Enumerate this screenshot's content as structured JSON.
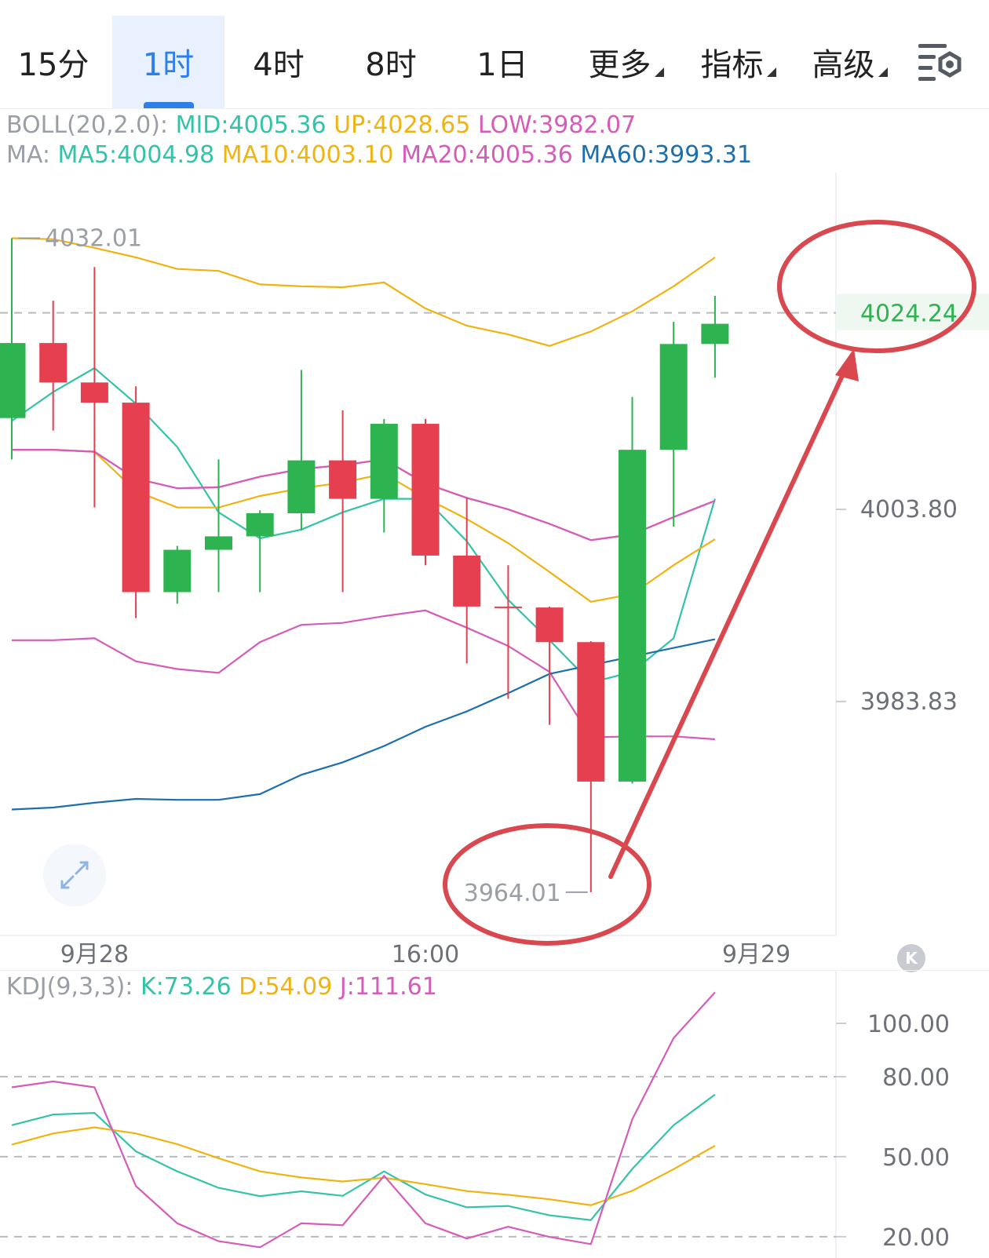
{
  "tabs": [
    {
      "label": "15分",
      "active": false,
      "dropdown": false
    },
    {
      "label": "1时",
      "active": true,
      "dropdown": false
    },
    {
      "label": "4时",
      "active": false,
      "dropdown": false
    },
    {
      "label": "8时",
      "active": false,
      "dropdown": false
    },
    {
      "label": "1日",
      "active": false,
      "dropdown": false
    },
    {
      "label": "更多",
      "active": false,
      "dropdown": true
    },
    {
      "label": "指标",
      "active": false,
      "dropdown": true
    },
    {
      "label": "高级",
      "active": false,
      "dropdown": true
    }
  ],
  "icons": {
    "settings": "chart-settings-icon",
    "expand": "expand-arrows-icon",
    "collapse": "k-collapse-icon"
  },
  "boll_legend": {
    "name": "BOLL(20,2.0):",
    "mid": "MID:4005.36",
    "up": "UP:4028.65",
    "low": "LOW:3982.07"
  },
  "ma_legend": {
    "name": "MA:",
    "ma5": "MA5:4004.98",
    "ma10": "MA10:4003.10",
    "ma20": "MA20:4005.36",
    "ma60": "MA60:3993.31"
  },
  "kdj_legend": {
    "name": "KDJ(9,3,3):",
    "k": "K:73.26",
    "d": "D:54.09",
    "j": "J:111.61"
  },
  "colors": {
    "up": "#2db350",
    "down": "#e63f4f",
    "boll_up": "#efb312",
    "boll_mid": "#d55cb8",
    "boll_low": "#d55cb8",
    "ma5": "#33c3a8",
    "ma10": "#efb312",
    "ma20": "#d55cb8",
    "ma60": "#1d6fae",
    "annotation": "#d9474f",
    "last_price": "#2db350",
    "active_tab": "#2f7fe8"
  },
  "chart_data": [
    {
      "type": "candlestick",
      "title": "",
      "y_ticks": [
        "4003.80",
        "3983.83"
      ],
      "ylim": [
        3959.5,
        4038
      ],
      "x_ticks": [
        {
          "label": "9月28",
          "index": 2
        },
        {
          "label": "16:00",
          "index": 10
        },
        {
          "label": "9月29",
          "index": 18
        }
      ],
      "high_label": "4032.01",
      "low_label": "3964.01",
      "last_price": "4024.24",
      "candles": [
        {
          "o": 4013.3,
          "h": 4032.0,
          "l": 4009.0,
          "c": 4021.1
        },
        {
          "o": 4021.1,
          "h": 4025.5,
          "l": 4012.0,
          "c": 4017.0
        },
        {
          "o": 4017.0,
          "h": 4029.0,
          "l": 4004.0,
          "c": 4014.9
        },
        {
          "o": 4014.9,
          "h": 4016.6,
          "l": 3992.5,
          "c": 3995.2
        },
        {
          "o": 3995.2,
          "h": 4000.0,
          "l": 3994.0,
          "c": 3999.6
        },
        {
          "o": 3999.6,
          "h": 4009.0,
          "l": 3995.2,
          "c": 4001.0
        },
        {
          "o": 4001.0,
          "h": 4003.7,
          "l": 3995.2,
          "c": 4003.4
        },
        {
          "o": 4003.4,
          "h": 4018.3,
          "l": 4001.6,
          "c": 4008.9
        },
        {
          "o": 4008.9,
          "h": 4014.1,
          "l": 3995.2,
          "c": 4004.9
        },
        {
          "o": 4004.9,
          "h": 4013.2,
          "l": 4001.4,
          "c": 4012.7
        },
        {
          "o": 4012.7,
          "h": 4013.2,
          "l": 3998.0,
          "c": 3999.0
        },
        {
          "o": 3999.0,
          "h": 4005.0,
          "l": 3987.8,
          "c": 3993.7
        },
        {
          "o": 3993.7,
          "h": 3998.0,
          "l": 3984.1,
          "c": 3993.6
        },
        {
          "o": 3993.6,
          "h": 3993.7,
          "l": 3981.4,
          "c": 3990.0
        },
        {
          "o": 3990.0,
          "h": 3990.1,
          "l": 3964.0,
          "c": 3975.5
        },
        {
          "o": 3975.5,
          "h": 4015.5,
          "l": 3975.3,
          "c": 4010.0
        },
        {
          "o": 4010.0,
          "h": 4023.3,
          "l": 4002.0,
          "c": 4021.0
        },
        {
          "o": 4021.0,
          "h": 4026.0,
          "l": 4017.5,
          "c": 4023.1
        }
      ],
      "series": [
        {
          "name": "UP",
          "values": [
            4032.0,
            4031.9,
            4031.0,
            4030.0,
            4028.8,
            4028.6,
            4027.2,
            4027.0,
            4026.9,
            4027.4,
            4024.7,
            4022.9,
            4022.0,
            4020.8,
            4022.3,
            4024.4,
            4027.0,
            4030.0
          ]
        },
        {
          "name": "MID",
          "values": [
            4010.0,
            4010.0,
            4009.8,
            4007.0,
            4006.0,
            4006.1,
            4007.2,
            4008.0,
            4008.4,
            4009.0,
            4006.5,
            4005.0,
            4003.8,
            4002.3,
            4000.6,
            4001.2,
            4003.0,
            4004.7
          ]
        },
        {
          "name": "LOW",
          "values": [
            3990.2,
            3990.2,
            3990.4,
            3988.0,
            3987.2,
            3986.8,
            3990.0,
            3991.8,
            3992.0,
            3992.7,
            3993.3,
            3991.5,
            3989.6,
            3986.9,
            3980.1,
            3980.2,
            3980.2,
            3979.9
          ]
        },
        {
          "name": "MA5",
          "values": [
            4013.0,
            4016.0,
            4018.5,
            4014.8,
            4010.3,
            4003.5,
            4000.8,
            4001.7,
            4003.5,
            4004.9,
            4004.9,
            4000.5,
            3994.4,
            3990.2,
            3985.8,
            3986.9,
            3990.4,
            4004.9
          ]
        },
        {
          "name": "MA10",
          "values": [
            4010.0,
            4010.0,
            4009.8,
            4005.7,
            4004.0,
            4004.0,
            4005.2,
            4006.0,
            4006.6,
            4007.5,
            4005.0,
            4002.8,
            4000.3,
            3997.3,
            3994.2,
            3995.0,
            3998.0,
            4000.7
          ]
        },
        {
          "name": "MA20",
          "values": [
            4010.0,
            4010.0,
            4009.8,
            4007.0,
            4006.0,
            4006.1,
            4007.2,
            4008.0,
            4008.4,
            4009.0,
            4006.5,
            4005.0,
            4003.8,
            4002.3,
            4000.6,
            4001.2,
            4003.0,
            4004.7
          ]
        },
        {
          "name": "MA60",
          "values": [
            3972.6,
            3972.8,
            3973.3,
            3973.7,
            3973.6,
            3973.6,
            3974.2,
            3976.2,
            3977.5,
            3979.2,
            3981.2,
            3982.8,
            3984.7,
            3986.7,
            3987.6,
            3988.5,
            3989.4,
            3990.3
          ]
        }
      ],
      "annotations": [
        "circle-around-low",
        "circle-around-last-price",
        "arrow-low-to-last-price"
      ]
    },
    {
      "type": "line",
      "title": "",
      "y_ticks": [
        "100.00",
        "80.00",
        "50.00",
        "20.00"
      ],
      "ylim": [
        12,
        120
      ],
      "dashed_levels": [
        80,
        50,
        20
      ],
      "series": [
        {
          "name": "K",
          "values": [
            61.8,
            65.8,
            66.4,
            52.0,
            44.5,
            38.3,
            35.2,
            37.0,
            35.3,
            44.5,
            35.8,
            31.0,
            31.5,
            28.0,
            26.2,
            45.4,
            61.8,
            73.3
          ]
        },
        {
          "name": "D",
          "values": [
            54.5,
            58.7,
            61.0,
            58.7,
            54.7,
            49.4,
            44.5,
            42.2,
            40.7,
            42.1,
            39.7,
            37.1,
            35.7,
            34.0,
            31.8,
            37.2,
            45.3,
            54.1
          ]
        },
        {
          "name": "J",
          "values": [
            76.0,
            78.2,
            76.0,
            39.0,
            25.0,
            18.3,
            16.0,
            25.0,
            24.3,
            42.8,
            25.0,
            19.3,
            23.7,
            19.9,
            17.2,
            64.0,
            94.5,
            111.6
          ]
        }
      ]
    }
  ]
}
